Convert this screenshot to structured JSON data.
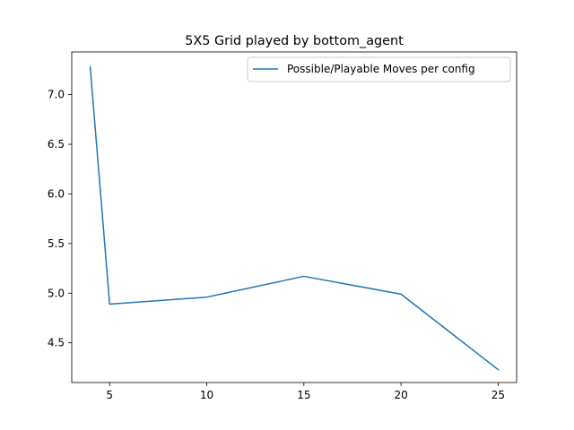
{
  "chart_data": {
    "type": "line",
    "title": "5X5 Grid played by bottom_agent",
    "xlabel": "",
    "ylabel": "",
    "x": [
      4,
      5,
      10,
      15,
      20,
      25
    ],
    "series": [
      {
        "name": "Possible/Playable Moves per config",
        "values": [
          7.28,
          4.89,
          4.96,
          5.17,
          4.99,
          4.23
        ],
        "color": "#1f77b4"
      }
    ],
    "xlim": [
      3.05,
      25.95
    ],
    "ylim": [
      4.1,
      7.43
    ],
    "xticks": [
      5,
      10,
      15,
      20,
      25
    ],
    "yticks": [
      4.5,
      5.0,
      5.5,
      6.0,
      6.5,
      7.0
    ],
    "xtick_labels": [
      "5",
      "10",
      "15",
      "20",
      "25"
    ],
    "ytick_labels": [
      "4.5",
      "5.0",
      "5.5",
      "6.0",
      "6.5",
      "7.0"
    ],
    "grid": false,
    "legend_position": "upper right"
  }
}
